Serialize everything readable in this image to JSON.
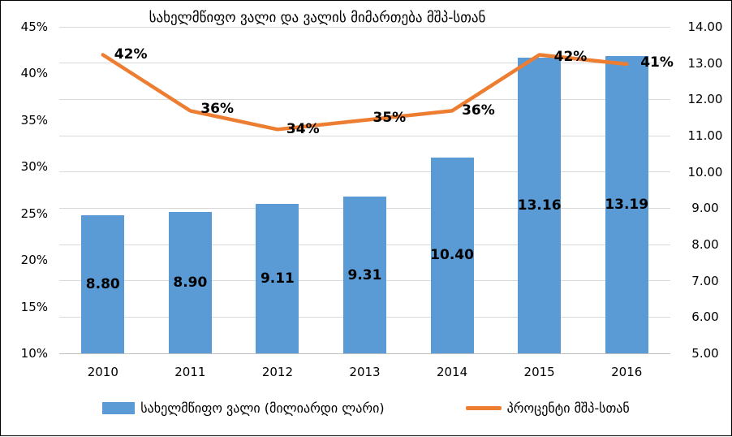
{
  "chart_data": {
    "type": "combo-bar-line",
    "title": "სახელმწიფო ვალი და ვალის მიმართება მშპ-სთან",
    "categories": [
      "2010",
      "2011",
      "2012",
      "2013",
      "2014",
      "2015",
      "2016"
    ],
    "series": [
      {
        "name": "სახელმწიფო ვალი (მილიარდი ლარი)",
        "type": "bar",
        "axis": "right",
        "color": "#5B9BD5",
        "values": [
          8.8,
          8.9,
          9.11,
          9.31,
          10.4,
          13.16,
          13.19
        ],
        "labels": [
          "8.80",
          "8.90",
          "9.11",
          "9.31",
          "10.40",
          "13.16",
          "13.19"
        ]
      },
      {
        "name": "პროცენტი მშპ-სთან",
        "type": "line",
        "axis": "left",
        "color": "#ED7D31",
        "values": [
          42,
          36,
          34,
          35,
          36,
          42,
          41
        ],
        "labels": [
          "42%",
          "36%",
          "34%",
          "35%",
          "36%",
          "42%",
          "41%"
        ]
      }
    ],
    "left_axis": {
      "min": 10,
      "max": 45,
      "tick_values": [
        45,
        40,
        35,
        30,
        25,
        20,
        15,
        10
      ],
      "ticks": [
        "45%",
        "40%",
        "35%",
        "30%",
        "25%",
        "20%",
        "15%",
        "10%"
      ]
    },
    "right_axis": {
      "min": 5,
      "max": 14,
      "tick_values": [
        14,
        13,
        12,
        11,
        10,
        9,
        8,
        7,
        6,
        5
      ],
      "ticks": [
        "14.00",
        "13.00",
        "12.00",
        "11.00",
        "10.00",
        "9.00",
        "8.00",
        "7.00",
        "6.00",
        "5.00"
      ]
    },
    "grid": true,
    "legend_position": "bottom",
    "colors": {
      "grid": "#D9D9D9",
      "axis_line": "#BFBFBF",
      "text": "#000000",
      "background": "#FFFFFF"
    }
  }
}
